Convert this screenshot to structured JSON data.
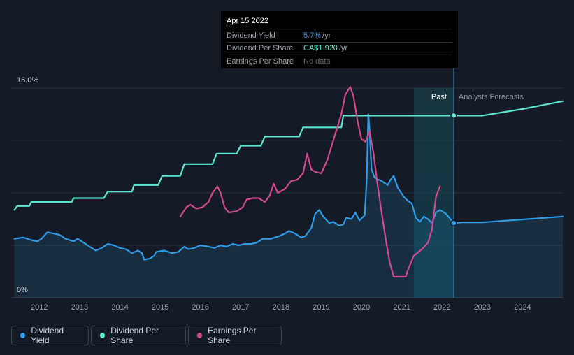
{
  "tooltip": {
    "date": "Apr 15 2022",
    "rows": [
      {
        "label": "Dividend Yield",
        "value": "5.7%",
        "unit": "/yr",
        "color": "#2d9be6"
      },
      {
        "label": "Dividend Per Share",
        "value": "CA$1.920",
        "unit": "/yr",
        "color": "#5ce6cf"
      },
      {
        "label": "Earnings Per Share",
        "value": "No data",
        "unit": "",
        "color": "#5d636b"
      }
    ]
  },
  "legend": [
    {
      "label": "Dividend Yield",
      "color": "#2d9be6",
      "icon": "dividend-yield-legend-dot"
    },
    {
      "label": "Dividend Per Share",
      "color": "#5ce6cf",
      "icon": "dividend-per-share-legend-dot"
    },
    {
      "label": "Earnings Per Share",
      "color": "#d04a8c",
      "icon": "earnings-per-share-legend-dot"
    }
  ],
  "chart_data": {
    "type": "line",
    "y_axis_labels": {
      "top": "16.0%",
      "bottom": "0%"
    },
    "ylim": [
      0,
      16
    ],
    "xlim": [
      2011.3,
      2025.0
    ],
    "x_ticks": [
      "2012",
      "2013",
      "2014",
      "2015",
      "2016",
      "2017",
      "2018",
      "2019",
      "2020",
      "2021",
      "2022",
      "2023",
      "2024"
    ],
    "past_label": "Past",
    "forecast_label": "Analysts Forecasts",
    "forecast_start": 2021.3,
    "past_end": 2022.29,
    "grid": true,
    "series": [
      {
        "name": "Dividend Yield",
        "color": "#2d9be6",
        "area": true,
        "points": [
          [
            2011.38,
            4.5
          ],
          [
            2011.6,
            4.6
          ],
          [
            2011.8,
            4.4
          ],
          [
            2011.95,
            4.3
          ],
          [
            2012.05,
            4.5
          ],
          [
            2012.2,
            5.0
          ],
          [
            2012.35,
            4.9
          ],
          [
            2012.5,
            4.8
          ],
          [
            2012.65,
            4.5
          ],
          [
            2012.85,
            4.3
          ],
          [
            2012.95,
            4.5
          ],
          [
            2013.1,
            4.2
          ],
          [
            2013.25,
            3.9
          ],
          [
            2013.4,
            3.6
          ],
          [
            2013.55,
            3.8
          ],
          [
            2013.7,
            4.1
          ],
          [
            2013.85,
            4.0
          ],
          [
            2014.0,
            3.8
          ],
          [
            2014.15,
            3.7
          ],
          [
            2014.3,
            3.4
          ],
          [
            2014.45,
            3.6
          ],
          [
            2014.55,
            3.4
          ],
          [
            2014.6,
            2.9
          ],
          [
            2014.75,
            3.0
          ],
          [
            2014.85,
            3.2
          ],
          [
            2014.9,
            3.5
          ],
          [
            2015.1,
            3.6
          ],
          [
            2015.3,
            3.4
          ],
          [
            2015.45,
            3.5
          ],
          [
            2015.6,
            3.9
          ],
          [
            2015.7,
            3.7
          ],
          [
            2015.85,
            3.8
          ],
          [
            2016.0,
            4.0
          ],
          [
            2016.2,
            3.9
          ],
          [
            2016.35,
            3.8
          ],
          [
            2016.5,
            4.0
          ],
          [
            2016.65,
            3.9
          ],
          [
            2016.8,
            4.1
          ],
          [
            2016.95,
            4.0
          ],
          [
            2017.1,
            4.1
          ],
          [
            2017.25,
            4.1
          ],
          [
            2017.4,
            4.2
          ],
          [
            2017.55,
            4.5
          ],
          [
            2017.75,
            4.5
          ],
          [
            2017.95,
            4.7
          ],
          [
            2018.1,
            4.9
          ],
          [
            2018.2,
            5.1
          ],
          [
            2018.35,
            4.9
          ],
          [
            2018.5,
            4.6
          ],
          [
            2018.6,
            4.7
          ],
          [
            2018.75,
            5.3
          ],
          [
            2018.85,
            6.4
          ],
          [
            2018.95,
            6.7
          ],
          [
            2019.05,
            6.2
          ],
          [
            2019.2,
            5.7
          ],
          [
            2019.3,
            5.8
          ],
          [
            2019.45,
            5.5
          ],
          [
            2019.55,
            5.6
          ],
          [
            2019.62,
            6.1
          ],
          [
            2019.75,
            6.0
          ],
          [
            2019.85,
            6.5
          ],
          [
            2019.95,
            5.9
          ],
          [
            2020.08,
            6.3
          ],
          [
            2020.13,
            9.0
          ],
          [
            2020.17,
            14.0
          ],
          [
            2020.2,
            12.8
          ],
          [
            2020.25,
            9.8
          ],
          [
            2020.32,
            9.2
          ],
          [
            2020.4,
            9.0
          ],
          [
            2020.45,
            9.0
          ],
          [
            2020.55,
            8.8
          ],
          [
            2020.65,
            8.6
          ],
          [
            2020.72,
            9.0
          ],
          [
            2020.8,
            9.3
          ],
          [
            2020.9,
            8.4
          ],
          [
            2021.05,
            7.7
          ],
          [
            2021.15,
            7.4
          ],
          [
            2021.25,
            7.2
          ],
          [
            2021.35,
            6.1
          ],
          [
            2021.45,
            5.8
          ],
          [
            2021.55,
            6.2
          ],
          [
            2021.65,
            6.0
          ],
          [
            2021.75,
            5.7
          ],
          [
            2021.85,
            6.5
          ],
          [
            2021.95,
            6.7
          ],
          [
            2022.1,
            6.4
          ],
          [
            2022.29,
            5.7
          ],
          [
            2022.5,
            5.75
          ],
          [
            2023.0,
            5.75
          ],
          [
            2025.0,
            6.2
          ]
        ]
      },
      {
        "name": "Dividend Per Share",
        "color": "#5ce6cf",
        "area": false,
        "points": [
          [
            2011.38,
            6.7
          ],
          [
            2011.45,
            7.0
          ],
          [
            2011.75,
            7.0
          ],
          [
            2011.8,
            7.3
          ],
          [
            2012.8,
            7.3
          ],
          [
            2012.85,
            7.6
          ],
          [
            2013.6,
            7.6
          ],
          [
            2013.7,
            8.1
          ],
          [
            2014.3,
            8.1
          ],
          [
            2014.35,
            8.6
          ],
          [
            2014.95,
            8.6
          ],
          [
            2015.05,
            9.3
          ],
          [
            2015.5,
            9.3
          ],
          [
            2015.6,
            10.2
          ],
          [
            2016.3,
            10.2
          ],
          [
            2016.4,
            11.0
          ],
          [
            2016.9,
            11.0
          ],
          [
            2017.0,
            11.6
          ],
          [
            2017.5,
            11.6
          ],
          [
            2017.6,
            12.3
          ],
          [
            2018.45,
            12.3
          ],
          [
            2018.55,
            13.0
          ],
          [
            2019.0,
            13.0
          ],
          [
            2019.5,
            13.0
          ],
          [
            2019.55,
            13.9
          ],
          [
            2022.29,
            13.9
          ],
          [
            2023.0,
            13.9
          ],
          [
            2024.0,
            14.4
          ],
          [
            2025.0,
            15.0
          ]
        ]
      },
      {
        "name": "Earnings Per Share",
        "color": "#d04a8c",
        "area": false,
        "points": [
          [
            2015.5,
            6.2
          ],
          [
            2015.65,
            6.9
          ],
          [
            2015.75,
            7.1
          ],
          [
            2015.9,
            6.8
          ],
          [
            2016.05,
            6.9
          ],
          [
            2016.2,
            7.3
          ],
          [
            2016.3,
            8.0
          ],
          [
            2016.42,
            8.5
          ],
          [
            2016.5,
            8.0
          ],
          [
            2016.6,
            6.9
          ],
          [
            2016.7,
            6.5
          ],
          [
            2016.9,
            6.6
          ],
          [
            2017.05,
            6.9
          ],
          [
            2017.15,
            7.5
          ],
          [
            2017.3,
            7.6
          ],
          [
            2017.45,
            7.6
          ],
          [
            2017.6,
            7.3
          ],
          [
            2017.72,
            7.8
          ],
          [
            2017.82,
            8.7
          ],
          [
            2017.92,
            8.0
          ],
          [
            2018.1,
            8.3
          ],
          [
            2018.25,
            8.9
          ],
          [
            2018.4,
            9.0
          ],
          [
            2018.55,
            9.5
          ],
          [
            2018.65,
            11.0
          ],
          [
            2018.75,
            9.8
          ],
          [
            2018.85,
            9.6
          ],
          [
            2019.0,
            9.5
          ],
          [
            2019.15,
            10.5
          ],
          [
            2019.3,
            12.0
          ],
          [
            2019.5,
            14.0
          ],
          [
            2019.6,
            15.5
          ],
          [
            2019.72,
            16.1
          ],
          [
            2019.8,
            15.4
          ],
          [
            2019.9,
            13.5
          ],
          [
            2020.0,
            12.1
          ],
          [
            2020.1,
            11.9
          ],
          [
            2020.2,
            12.7
          ],
          [
            2020.3,
            11.0
          ],
          [
            2020.4,
            8.6
          ],
          [
            2020.5,
            6.5
          ],
          [
            2020.6,
            4.5
          ],
          [
            2020.7,
            2.7
          ],
          [
            2020.8,
            1.6
          ],
          [
            2020.95,
            1.6
          ],
          [
            2021.1,
            1.6
          ],
          [
            2021.15,
            2.1
          ],
          [
            2021.3,
            3.2
          ],
          [
            2021.5,
            3.7
          ],
          [
            2021.65,
            4.2
          ],
          [
            2021.75,
            5.2
          ],
          [
            2021.85,
            7.7
          ],
          [
            2021.95,
            8.5
          ]
        ]
      }
    ],
    "markers": [
      {
        "series": "Dividend Yield",
        "x": 2022.29,
        "y": 5.7
      },
      {
        "series": "Dividend Per Share",
        "x": 2022.29,
        "y": 13.9
      }
    ]
  }
}
